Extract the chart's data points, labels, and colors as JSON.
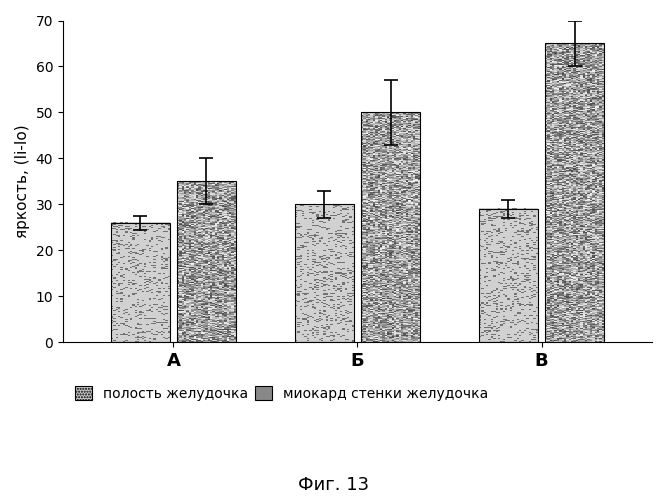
{
  "groups": [
    "А",
    "Б",
    "В"
  ],
  "bar1_values": [
    26,
    30,
    29
  ],
  "bar2_values": [
    35,
    50,
    65
  ],
  "bar1_errors": [
    1.5,
    3,
    2
  ],
  "bar2_errors": [
    5,
    7,
    5
  ],
  "ylabel": "яркость, (Ii-Io)",
  "ylim": [
    0,
    70
  ],
  "yticks": [
    0,
    10,
    20,
    30,
    40,
    50,
    60,
    70
  ],
  "legend1": "полость желудочка",
  "legend2": "миокард стенки желудочка",
  "caption": "Фиг. 13",
  "bar_width": 0.32,
  "background_color": "#ffffff",
  "group_fontsize": 13,
  "ylabel_fontsize": 11,
  "caption_fontsize": 13,
  "tick_fontsize": 10
}
